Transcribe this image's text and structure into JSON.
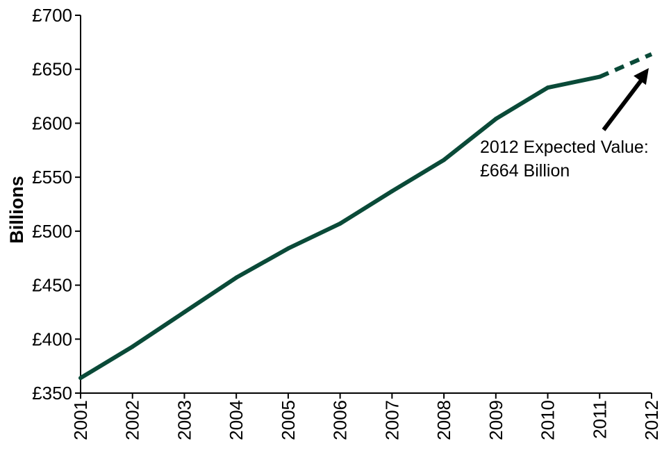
{
  "chart_data": {
    "type": "line",
    "title": "",
    "xlabel": "",
    "ylabel": "Billions",
    "x": [
      "2001",
      "2002",
      "2003",
      "2004",
      "2005",
      "2006",
      "2007",
      "2008",
      "2009",
      "2010",
      "2011",
      "2012"
    ],
    "series": [
      {
        "values": [
          364,
          393,
          425,
          457,
          484,
          507,
          537,
          566,
          604,
          633,
          643,
          664
        ],
        "line_style": [
          "solid",
          "solid",
          "solid",
          "solid",
          "solid",
          "solid",
          "solid",
          "solid",
          "solid",
          "solid",
          "dashed"
        ],
        "color": "#0a4a38"
      }
    ],
    "ylim": [
      350,
      700
    ],
    "y_ticks": [
      350,
      400,
      450,
      500,
      550,
      600,
      650,
      700
    ],
    "y_tick_labels": [
      "£350",
      "£400",
      "£450",
      "£500",
      "£550",
      "£600",
      "£650",
      "£700"
    ],
    "grid": false,
    "legend": "none",
    "annotations": [
      {
        "text_lines": [
          "2012 Expected Value:",
          "£664 Billion"
        ],
        "points_to": {
          "x": "2012",
          "y": 664
        },
        "arrow": true
      }
    ]
  }
}
